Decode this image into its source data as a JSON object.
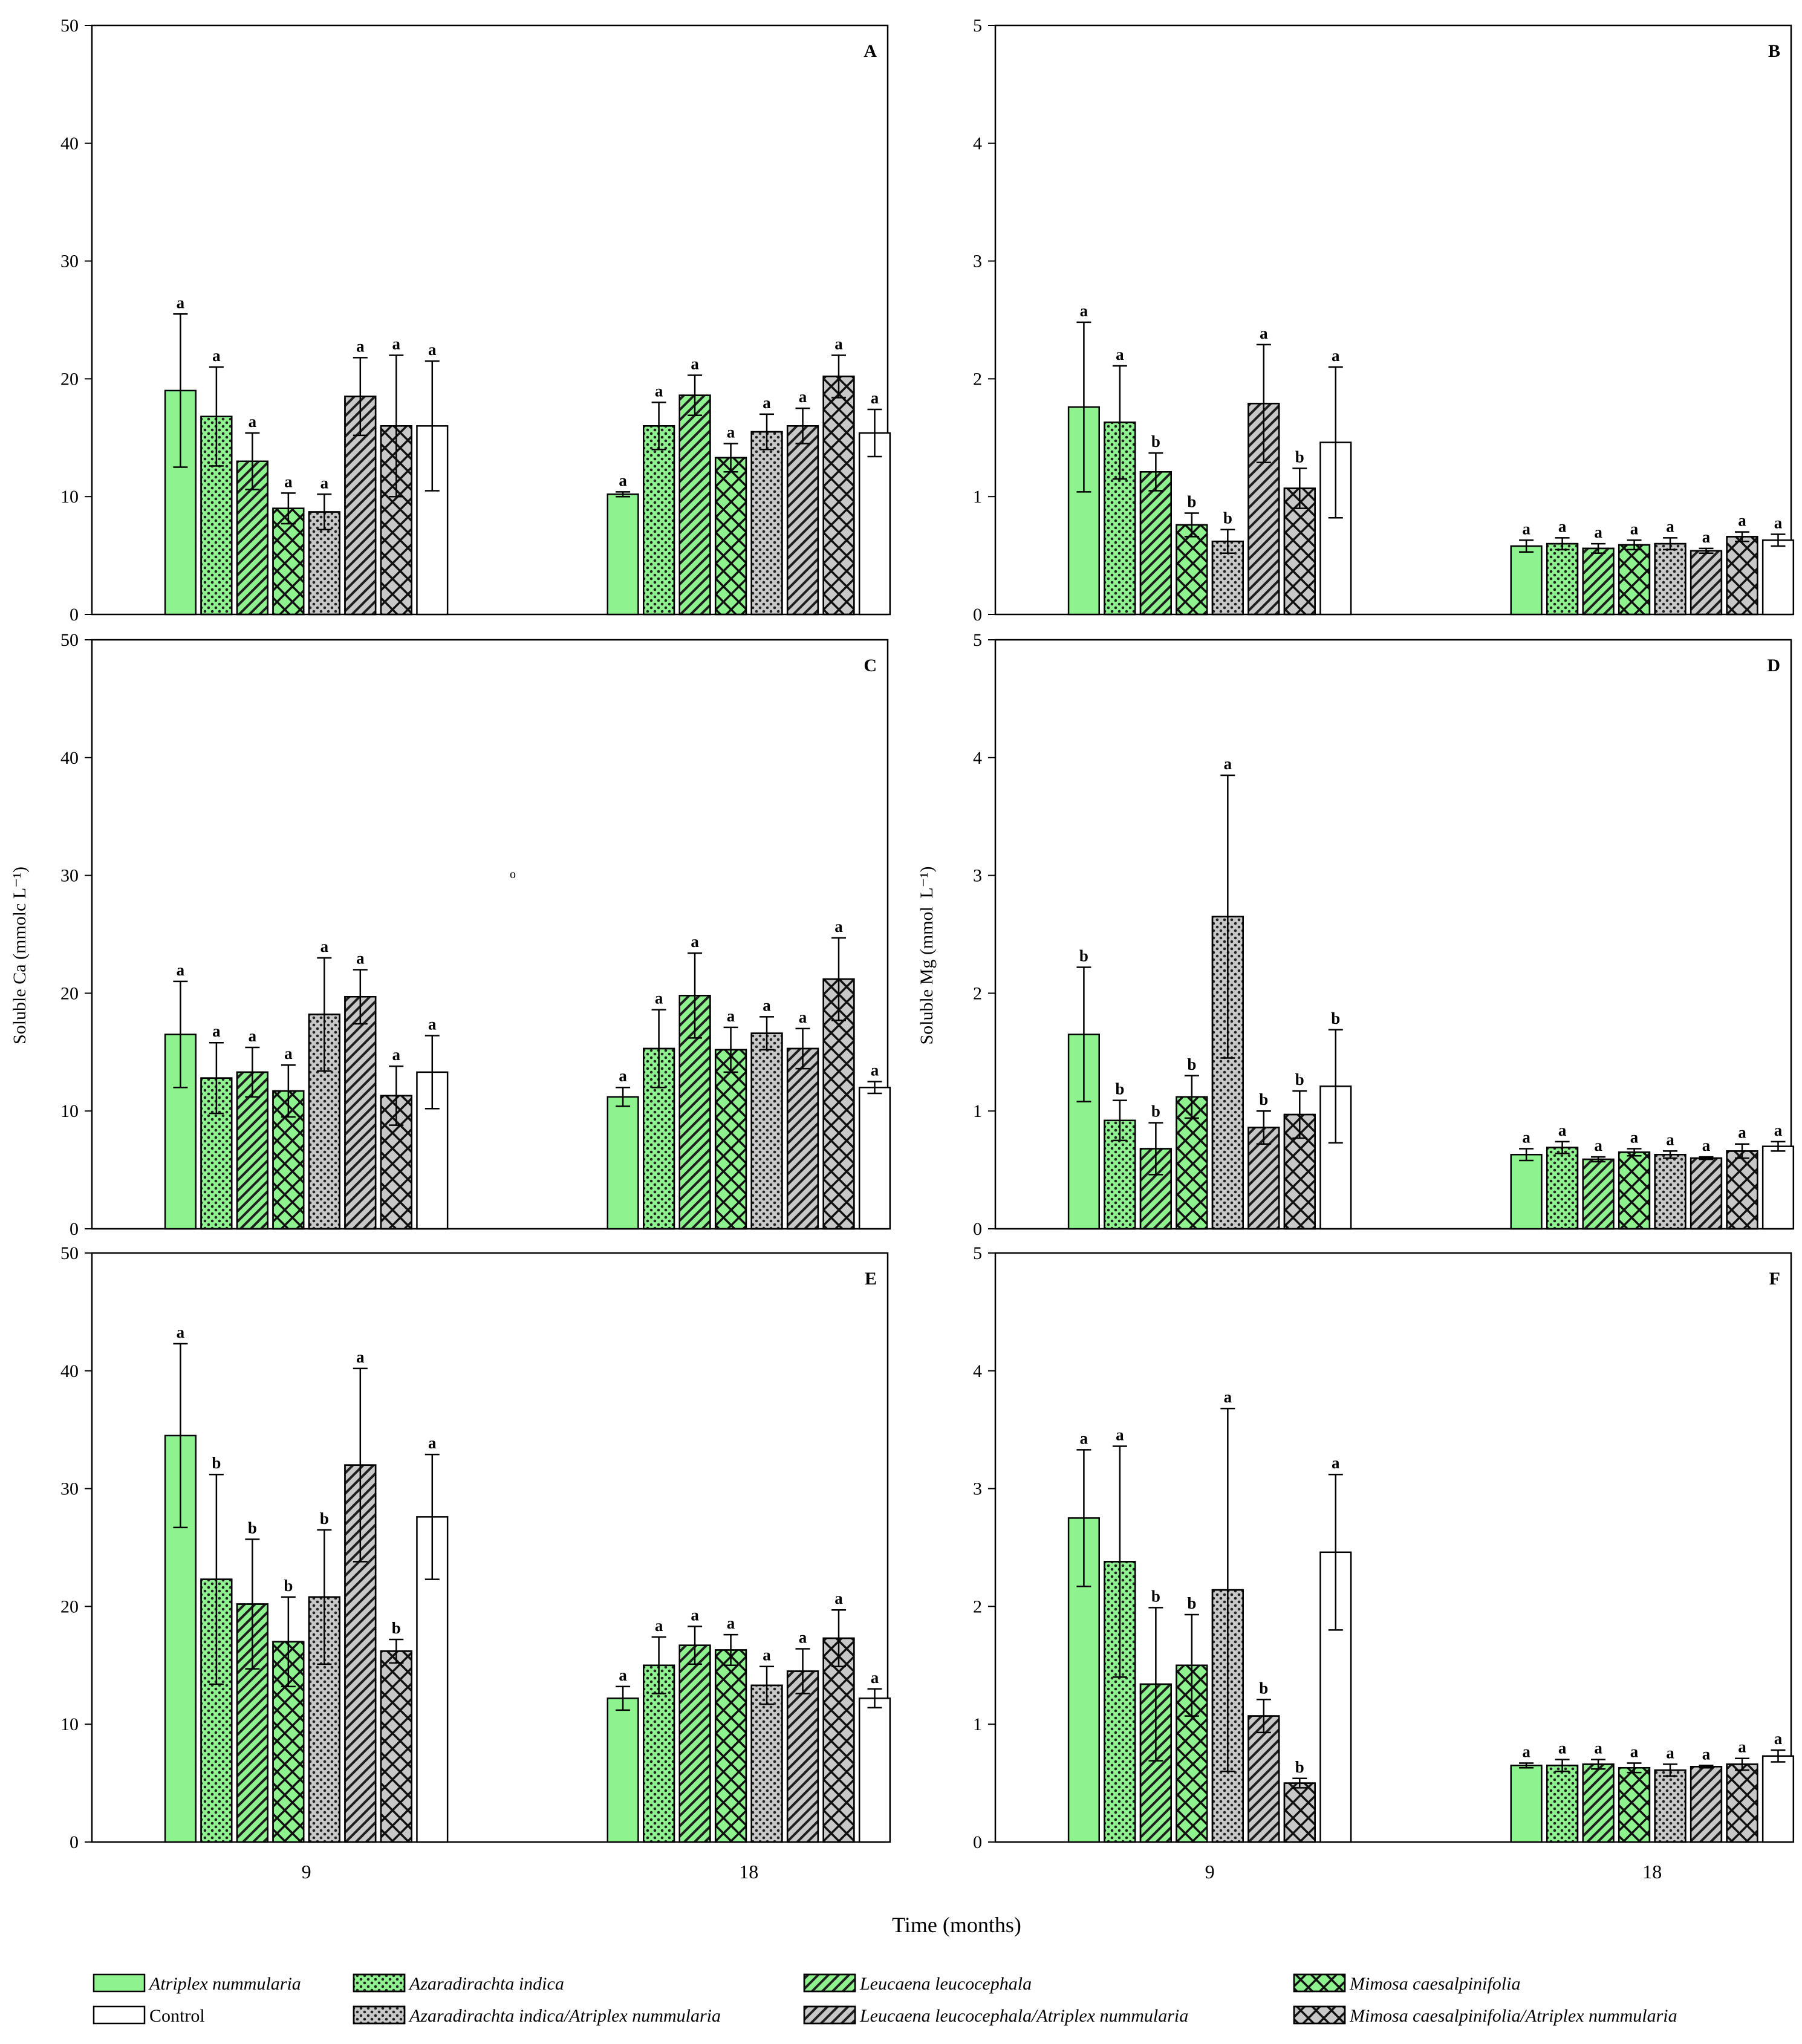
{
  "figure": {
    "xlabel": "Time (months)",
    "ylabel_left": "Soluble Ca (mmolc L⁻¹)",
    "ylabel_right": "Soluble Mg (mmol  L⁻¹)",
    "stray_mark": "o"
  },
  "legend": [
    {
      "label": "Atriplex nummularia",
      "pattern": "solid",
      "fill": "#8ef28e"
    },
    {
      "label": "Azaradirachta indica",
      "pattern": "dots",
      "fill": "#8ef28e"
    },
    {
      "label": "Leucaena leucocephala",
      "pattern": "diag",
      "fill": "#8ef28e"
    },
    {
      "label": "Mimosa caesalpinifolia",
      "pattern": "cross",
      "fill": "#8ef28e"
    },
    {
      "label": "Control",
      "pattern": "white",
      "fill": "#ffffff"
    },
    {
      "label": "Azaradirachta indica/Atriplex nummularia",
      "pattern": "dots",
      "fill": "#c8c8c8"
    },
    {
      "label": "Leucaena leucocephala/Atriplex nummularia",
      "pattern": "diag",
      "fill": "#c8c8c8"
    },
    {
      "label": "Mimosa caesalpinifolia/Atriplex nummularia",
      "pattern": "cross",
      "fill": "#c8c8c8"
    }
  ],
  "colors": {
    "green": "#8ef28e",
    "gray": "#c8c8c8",
    "white": "#ffffff",
    "ink": "#000000"
  },
  "chart_data": [
    {
      "type": "bar",
      "panel": "A",
      "categories": [
        "9",
        "18"
      ],
      "ylim": [
        0,
        50
      ],
      "yticks": [
        0,
        10,
        20,
        30,
        40,
        50
      ],
      "series": [
        {
          "name": "Atriplex nummularia",
          "values": [
            19,
            10.2
          ],
          "errors": [
            6.5,
            0.2
          ],
          "letters": [
            "a",
            "a"
          ]
        },
        {
          "name": "Azaradirachta indica",
          "values": [
            16.8,
            16
          ],
          "errors": [
            4.2,
            2
          ],
          "letters": [
            "a",
            "a"
          ]
        },
        {
          "name": "Leucaena leucocephala",
          "values": [
            13,
            18.6
          ],
          "errors": [
            2.4,
            1.7
          ],
          "letters": [
            "a",
            "a"
          ]
        },
        {
          "name": "Mimosa caesalpinifolia",
          "values": [
            9,
            13.3
          ],
          "errors": [
            1.3,
            1.2
          ],
          "letters": [
            "a",
            "a"
          ]
        },
        {
          "name": "Azaradirachta indica/Atriplex nummularia",
          "values": [
            8.7,
            15.5
          ],
          "errors": [
            1.5,
            1.5
          ],
          "letters": [
            "a",
            "a"
          ]
        },
        {
          "name": "Leucaena leucocephala/Atriplex nummularia",
          "values": [
            18.5,
            16
          ],
          "errors": [
            3.3,
            1.5
          ],
          "letters": [
            "a",
            "a"
          ]
        },
        {
          "name": "Mimosa caesalpinifolia/Atriplex nummularia",
          "values": [
            16,
            20.2
          ],
          "errors": [
            6,
            1.8
          ],
          "letters": [
            "a",
            "a"
          ]
        },
        {
          "name": "Control",
          "values": [
            16,
            15.4
          ],
          "errors": [
            5.5,
            2
          ],
          "letters": [
            "a",
            "a"
          ]
        }
      ]
    },
    {
      "type": "bar",
      "panel": "B",
      "categories": [
        "9",
        "18"
      ],
      "ylim": [
        0,
        5
      ],
      "yticks": [
        0,
        1,
        2,
        3,
        4,
        5
      ],
      "series": [
        {
          "name": "Atriplex nummularia",
          "values": [
            1.76,
            0.58
          ],
          "errors": [
            0.72,
            0.05
          ],
          "letters": [
            "a",
            "a"
          ]
        },
        {
          "name": "Azaradirachta indica",
          "values": [
            1.63,
            0.6
          ],
          "errors": [
            0.48,
            0.05
          ],
          "letters": [
            "a",
            "a"
          ]
        },
        {
          "name": "Leucaena leucocephala",
          "values": [
            1.21,
            0.56
          ],
          "errors": [
            0.16,
            0.04
          ],
          "letters": [
            "b",
            "a"
          ]
        },
        {
          "name": "Mimosa caesalpinifolia",
          "values": [
            0.76,
            0.59
          ],
          "errors": [
            0.1,
            0.04
          ],
          "letters": [
            "b",
            "a"
          ]
        },
        {
          "name": "Azaradirachta indica/Atriplex nummularia",
          "values": [
            0.62,
            0.6
          ],
          "errors": [
            0.1,
            0.05
          ],
          "letters": [
            "b",
            "a"
          ]
        },
        {
          "name": "Leucaena leucocephala/Atriplex nummularia",
          "values": [
            1.79,
            0.54
          ],
          "errors": [
            0.5,
            0.02
          ],
          "letters": [
            "a",
            "a"
          ]
        },
        {
          "name": "Mimosa caesalpinifolia/Atriplex nummularia",
          "values": [
            1.07,
            0.66
          ],
          "errors": [
            0.17,
            0.04
          ],
          "letters": [
            "b",
            "a"
          ]
        },
        {
          "name": "Control",
          "values": [
            1.46,
            0.63
          ],
          "errors": [
            0.64,
            0.05
          ],
          "letters": [
            "a",
            "a"
          ]
        }
      ]
    },
    {
      "type": "bar",
      "panel": "C",
      "categories": [
        "9",
        "18"
      ],
      "ylim": [
        0,
        50
      ],
      "yticks": [
        0,
        10,
        20,
        30,
        40,
        50
      ],
      "series": [
        {
          "name": "Atriplex nummularia",
          "values": [
            16.5,
            11.2
          ],
          "errors": [
            4.5,
            0.8
          ],
          "letters": [
            "a",
            "a"
          ]
        },
        {
          "name": "Azaradirachta indica",
          "values": [
            12.8,
            15.3
          ],
          "errors": [
            3,
            3.3
          ],
          "letters": [
            "a",
            "a"
          ]
        },
        {
          "name": "Leucaena leucocephala",
          "values": [
            13.3,
            19.8
          ],
          "errors": [
            2.1,
            3.6
          ],
          "letters": [
            "a",
            "a"
          ]
        },
        {
          "name": "Mimosa caesalpinifolia",
          "values": [
            11.7,
            15.2
          ],
          "errors": [
            2.2,
            1.9
          ],
          "letters": [
            "a",
            "a"
          ]
        },
        {
          "name": "Azaradirachta indica/Atriplex nummularia",
          "values": [
            18.2,
            16.6
          ],
          "errors": [
            4.8,
            1.4
          ],
          "letters": [
            "a",
            "a"
          ]
        },
        {
          "name": "Leucaena leucocephala/Atriplex nummularia",
          "values": [
            19.7,
            15.3
          ],
          "errors": [
            2.3,
            1.7
          ],
          "letters": [
            "a",
            "a"
          ]
        },
        {
          "name": "Mimosa caesalpinifolia/Atriplex nummularia",
          "values": [
            11.3,
            21.2
          ],
          "errors": [
            2.5,
            3.5
          ],
          "letters": [
            "a",
            "a"
          ]
        },
        {
          "name": "Control",
          "values": [
            13.3,
            12
          ],
          "errors": [
            3.1,
            0.5
          ],
          "letters": [
            "a",
            "a"
          ]
        }
      ]
    },
    {
      "type": "bar",
      "panel": "D",
      "categories": [
        "9",
        "18"
      ],
      "ylim": [
        0,
        5
      ],
      "yticks": [
        0,
        1,
        2,
        3,
        4,
        5
      ],
      "series": [
        {
          "name": "Atriplex nummularia",
          "values": [
            1.65,
            0.63
          ],
          "errors": [
            0.57,
            0.05
          ],
          "letters": [
            "b",
            "a"
          ]
        },
        {
          "name": "Azaradirachta indica",
          "values": [
            0.92,
            0.69
          ],
          "errors": [
            0.17,
            0.05
          ],
          "letters": [
            "b",
            "a"
          ]
        },
        {
          "name": "Leucaena leucocephala",
          "values": [
            0.68,
            0.59
          ],
          "errors": [
            0.22,
            0.02
          ],
          "letters": [
            "b",
            "a"
          ]
        },
        {
          "name": "Mimosa caesalpinifolia",
          "values": [
            1.12,
            0.65
          ],
          "errors": [
            0.18,
            0.03
          ],
          "letters": [
            "b",
            "a"
          ]
        },
        {
          "name": "Azaradirachta indica/Atriplex nummularia",
          "values": [
            2.65,
            0.63
          ],
          "errors": [
            1.2,
            0.03
          ],
          "letters": [
            "a",
            "a"
          ]
        },
        {
          "name": "Leucaena leucocephala/Atriplex nummularia",
          "values": [
            0.86,
            0.6
          ],
          "errors": [
            0.14,
            0.01
          ],
          "letters": [
            "b",
            "a"
          ]
        },
        {
          "name": "Mimosa caesalpinifolia/Atriplex nummularia",
          "values": [
            0.97,
            0.66
          ],
          "errors": [
            0.2,
            0.06
          ],
          "letters": [
            "b",
            "a"
          ]
        },
        {
          "name": "Control",
          "values": [
            1.21,
            0.7
          ],
          "errors": [
            0.48,
            0.04
          ],
          "letters": [
            "b",
            "a"
          ]
        }
      ]
    },
    {
      "type": "bar",
      "panel": "E",
      "categories": [
        "9",
        "18"
      ],
      "ylim": [
        0,
        50
      ],
      "yticks": [
        0,
        10,
        20,
        30,
        40,
        50
      ],
      "series": [
        {
          "name": "Atriplex nummularia",
          "values": [
            34.5,
            12.2
          ],
          "errors": [
            7.8,
            1
          ],
          "letters": [
            "a",
            "a"
          ]
        },
        {
          "name": "Azaradirachta indica",
          "values": [
            22.3,
            15
          ],
          "errors": [
            8.9,
            2.4
          ],
          "letters": [
            "b",
            "a"
          ]
        },
        {
          "name": "Leucaena leucocephala",
          "values": [
            20.2,
            16.7
          ],
          "errors": [
            5.5,
            1.6
          ],
          "letters": [
            "b",
            "a"
          ]
        },
        {
          "name": "Mimosa caesalpinifolia",
          "values": [
            17,
            16.3
          ],
          "errors": [
            3.8,
            1.3
          ],
          "letters": [
            "b",
            "a"
          ]
        },
        {
          "name": "Azaradirachta indica/Atriplex nummularia",
          "values": [
            20.8,
            13.3
          ],
          "errors": [
            5.7,
            1.6
          ],
          "letters": [
            "b",
            "a"
          ]
        },
        {
          "name": "Leucaena leucocephala/Atriplex nummularia",
          "values": [
            32,
            14.5
          ],
          "errors": [
            8.2,
            1.9
          ],
          "letters": [
            "a",
            "a"
          ]
        },
        {
          "name": "Mimosa caesalpinifolia/Atriplex nummularia",
          "values": [
            16.2,
            17.3
          ],
          "errors": [
            1,
            2.4
          ],
          "letters": [
            "b",
            "a"
          ]
        },
        {
          "name": "Control",
          "values": [
            27.6,
            12.2
          ],
          "errors": [
            5.3,
            0.8
          ],
          "letters": [
            "a",
            "a"
          ]
        }
      ]
    },
    {
      "type": "bar",
      "panel": "F",
      "categories": [
        "9",
        "18"
      ],
      "ylim": [
        0,
        5
      ],
      "yticks": [
        0,
        1,
        2,
        3,
        4,
        5
      ],
      "series": [
        {
          "name": "Atriplex nummularia",
          "values": [
            2.75,
            0.65
          ],
          "errors": [
            0.58,
            0.02
          ],
          "letters": [
            "a",
            "a"
          ]
        },
        {
          "name": "Azaradirachta indica",
          "values": [
            2.38,
            0.65
          ],
          "errors": [
            0.98,
            0.05
          ],
          "letters": [
            "a",
            "a"
          ]
        },
        {
          "name": "Leucaena leucocephala",
          "values": [
            1.34,
            0.66
          ],
          "errors": [
            0.65,
            0.04
          ],
          "letters": [
            "b",
            "a"
          ]
        },
        {
          "name": "Mimosa caesalpinifolia",
          "values": [
            1.5,
            0.63
          ],
          "errors": [
            0.43,
            0.04
          ],
          "letters": [
            "b",
            "a"
          ]
        },
        {
          "name": "Azaradirachta indica/Atriplex nummularia",
          "values": [
            2.14,
            0.61
          ],
          "errors": [
            1.54,
            0.05
          ],
          "letters": [
            "a",
            "a"
          ]
        },
        {
          "name": "Leucaena leucocephala/Atriplex nummularia",
          "values": [
            1.07,
            0.64
          ],
          "errors": [
            0.14,
            0.01
          ],
          "letters": [
            "b",
            "a"
          ]
        },
        {
          "name": "Mimosa caesalpinifolia/Atriplex nummularia",
          "values": [
            0.5,
            0.66
          ],
          "errors": [
            0.04,
            0.05
          ],
          "letters": [
            "b",
            "a"
          ]
        },
        {
          "name": "Control",
          "values": [
            2.46,
            0.73
          ],
          "errors": [
            0.66,
            0.05
          ],
          "letters": [
            "a",
            "a"
          ]
        }
      ]
    }
  ]
}
